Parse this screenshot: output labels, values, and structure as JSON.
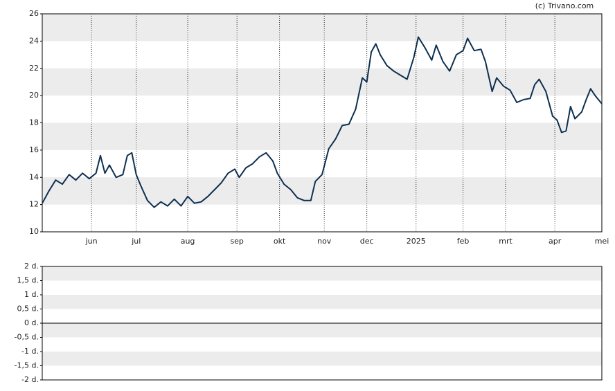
{
  "credit": "(c) Trivano.com",
  "chart_data": [
    {
      "type": "line",
      "color": "#0d2f4f",
      "x": [
        0,
        3,
        6,
        9,
        12,
        15,
        18,
        21,
        24,
        26,
        28,
        30,
        33,
        36,
        38,
        40,
        42,
        44,
        47,
        50,
        53,
        56,
        59,
        62,
        65,
        68,
        71,
        74,
        77,
        80,
        83,
        86,
        88,
        91,
        94,
        97,
        100,
        103,
        105,
        108,
        111,
        114,
        117,
        120,
        122,
        125,
        128,
        131,
        134,
        137,
        140,
        143,
        145,
        147,
        149,
        151,
        154,
        157,
        160,
        163,
        166,
        168,
        171,
        174,
        176,
        179,
        182,
        185,
        188,
        190,
        193,
        196,
        198,
        201,
        203,
        206,
        209,
        212,
        215,
        218,
        220,
        222,
        225,
        228,
        230,
        232,
        234,
        236,
        238,
        241,
        243,
        245,
        247,
        250
      ],
      "values": [
        12.1,
        13.0,
        13.8,
        13.5,
        14.2,
        13.8,
        14.3,
        13.9,
        14.3,
        15.6,
        14.3,
        14.9,
        14.0,
        14.2,
        15.6,
        15.8,
        14.2,
        13.4,
        12.3,
        11.8,
        12.2,
        11.9,
        12.4,
        11.9,
        12.6,
        12.1,
        12.2,
        12.6,
        13.1,
        13.6,
        14.3,
        14.6,
        14.0,
        14.7,
        15.0,
        15.5,
        15.8,
        15.2,
        14.3,
        13.5,
        13.1,
        12.5,
        12.3,
        12.3,
        13.7,
        14.2,
        16.1,
        16.8,
        17.8,
        17.9,
        19.0,
        21.3,
        21.0,
        23.2,
        23.8,
        23.0,
        22.2,
        21.8,
        21.5,
        21.2,
        22.8,
        24.3,
        23.5,
        22.6,
        23.7,
        22.5,
        21.8,
        23.0,
        23.3,
        24.2,
        23.3,
        23.4,
        22.5,
        20.3,
        21.3,
        20.7,
        20.4,
        19.5,
        19.7,
        19.8,
        20.8,
        21.2,
        20.3,
        18.5,
        18.2,
        17.3,
        17.4,
        19.2,
        18.3,
        18.8,
        19.7,
        20.5,
        20.0,
        19.4
      ],
      "xlim": [
        0,
        250
      ],
      "xticks": [
        {
          "value": 22,
          "label": "jun"
        },
        {
          "value": 42,
          "label": "jul"
        },
        {
          "value": 65,
          "label": "aug"
        },
        {
          "value": 87,
          "label": "sep"
        },
        {
          "value": 106,
          "label": "okt"
        },
        {
          "value": 126,
          "label": "nov"
        },
        {
          "value": 145,
          "label": "dec"
        },
        {
          "value": 167,
          "label": "2025"
        },
        {
          "value": 188,
          "label": "feb"
        },
        {
          "value": 207,
          "label": "mrt"
        },
        {
          "value": 229,
          "label": "apr"
        },
        {
          "value": 250,
          "label": "mei"
        }
      ],
      "ylim": [
        10,
        26
      ],
      "yticks": [
        10,
        12,
        14,
        16,
        18,
        20,
        22,
        24,
        26
      ]
    },
    {
      "type": "empty",
      "ylim": [
        -2,
        2
      ],
      "yticks": [
        {
          "value": -2,
          "label": "-2 d."
        },
        {
          "value": -1.5,
          "label": "-1,5 d."
        },
        {
          "value": -1,
          "label": "-1 d."
        },
        {
          "value": -0.5,
          "label": "-0,5 d."
        },
        {
          "value": 0,
          "label": "0 d."
        },
        {
          "value": 0.5,
          "label": "0,5 d."
        },
        {
          "value": 1,
          "label": "1 d."
        },
        {
          "value": 1.5,
          "label": "1,5 d."
        },
        {
          "value": 2,
          "label": "2 d."
        }
      ]
    }
  ]
}
